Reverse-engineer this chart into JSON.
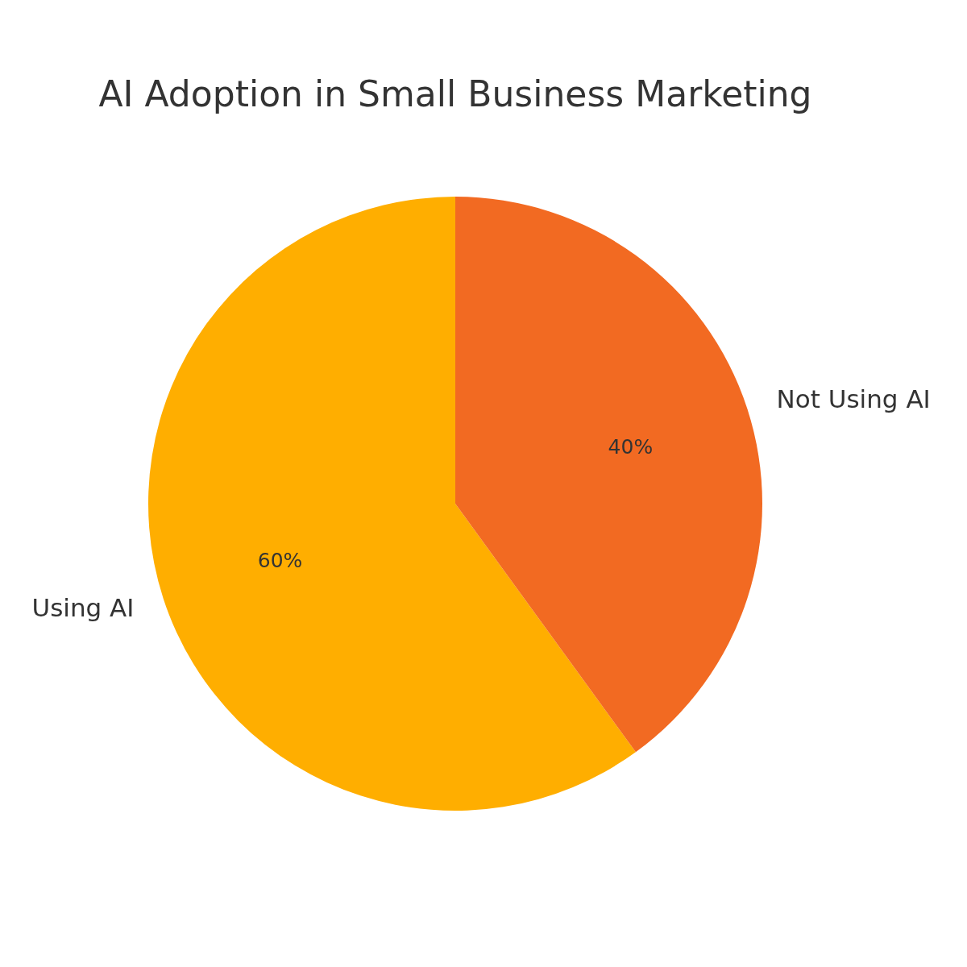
{
  "chart_data": {
    "type": "pie",
    "title": "AI Adoption in Small Business Marketing",
    "categories": [
      "Using AI",
      "Not Using AI"
    ],
    "values": [
      60,
      40
    ],
    "colors": [
      "#ffae00",
      "#f26a22"
    ],
    "value_labels": [
      "60%",
      "40%"
    ]
  }
}
